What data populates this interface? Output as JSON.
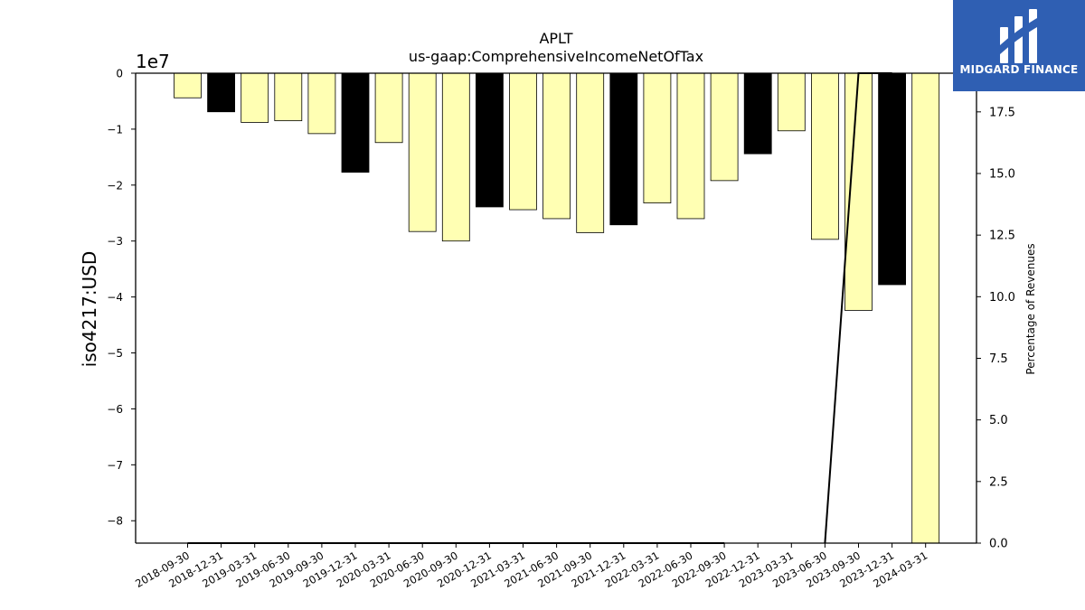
{
  "brand": {
    "name": "MIDGARD FINANCE",
    "bg_color": "#2f5fb3"
  },
  "chart_data": {
    "type": "bar",
    "title": "APLT",
    "subtitle": "us-gaap:ComprehensiveIncomeNetOfTax",
    "ylabel": "iso4217:USD",
    "y_offset_label": "1e7",
    "y2label": "Percentage of Revenues",
    "ylim": [
      -84000000,
      0
    ],
    "y2lim": [
      0,
      19.07
    ],
    "yticks": [
      0,
      -10000000,
      -20000000,
      -30000000,
      -40000000,
      -50000000,
      -60000000,
      -70000000,
      -80000000
    ],
    "ytick_labels": [
      "0",
      "−1",
      "−2",
      "−3",
      "−4",
      "−5",
      "−6",
      "−7",
      "−8"
    ],
    "y2ticks": [
      0,
      2.5,
      5,
      7.5,
      10,
      12.5,
      15,
      17.5
    ],
    "y2tick_labels": [
      "0.0",
      "2.5",
      "5.0",
      "7.5",
      "10.0",
      "12.5",
      "15.0",
      "17.5"
    ],
    "categories": [
      "2018-09-30",
      "2018-12-31",
      "2019-03-31",
      "2019-06-30",
      "2019-09-30",
      "2019-12-31",
      "2020-03-31",
      "2020-06-30",
      "2020-09-30",
      "2020-12-31",
      "2021-03-31",
      "2021-06-30",
      "2021-09-30",
      "2021-12-31",
      "2022-03-31",
      "2022-06-30",
      "2022-09-30",
      "2022-12-31",
      "2023-03-31",
      "2023-06-30",
      "2023-09-30",
      "2023-12-31",
      "2024-03-31"
    ],
    "values": [
      -4400000,
      -6900000,
      -8800000,
      -8500000,
      -10800000,
      -17700000,
      -12400000,
      -28300000,
      -30000000,
      -23900000,
      -24400000,
      -26000000,
      -28500000,
      -27100000,
      -23200000,
      -26000000,
      -19200000,
      -14400000,
      -10300000,
      -29700000,
      -42400000,
      -37800000,
      -84000000
    ],
    "bar_colors": [
      "#ffffb3",
      "#000000",
      "#ffffb3",
      "#ffffb3",
      "#ffffb3",
      "#000000",
      "#ffffb3",
      "#ffffb3",
      "#ffffb3",
      "#000000",
      "#ffffb3",
      "#ffffb3",
      "#ffffb3",
      "#000000",
      "#ffffb3",
      "#ffffb3",
      "#ffffb3",
      "#000000",
      "#ffffb3",
      "#ffffb3",
      "#ffffb3",
      "#000000",
      "#ffffb3"
    ],
    "pct_of_revenues": [
      0,
      0,
      0,
      0,
      0,
      0,
      0,
      0,
      0,
      0,
      0,
      0,
      0,
      0,
      0,
      0,
      0,
      null,
      null,
      0,
      19.07,
      19.07,
      null
    ]
  }
}
